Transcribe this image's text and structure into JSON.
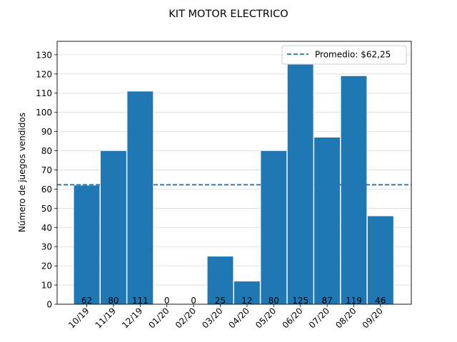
{
  "chart_data": {
    "type": "bar",
    "title": "KIT MOTOR ELECTRICO",
    "xlabel": "",
    "ylabel": "Número de juegos vendidos",
    "categories": [
      "10/19",
      "11/19",
      "12/19",
      "01/20",
      "02/20",
      "03/20",
      "04/20",
      "05/20",
      "06/20",
      "07/20",
      "08/20",
      "09/20"
    ],
    "values": [
      62,
      80,
      111,
      0,
      0,
      25,
      12,
      80,
      125,
      87,
      119,
      46
    ],
    "value_labels": [
      "62",
      "80",
      "111",
      "0",
      "0",
      "25",
      "12",
      "80",
      "125",
      "87",
      "119",
      "46"
    ],
    "ylim": [
      0,
      137
    ],
    "yticks": [
      "0",
      "10",
      "20",
      "30",
      "40",
      "50",
      "60",
      "70",
      "80",
      "90",
      "100",
      "110",
      "120",
      "130"
    ],
    "grid": "horizontal",
    "bar_color": "#1f77b4",
    "reference_line": {
      "value": 62.25,
      "label": "Promedio: $62,25",
      "color": "#1f77b4",
      "style": "dashed"
    },
    "legend_placement": "top-right"
  }
}
